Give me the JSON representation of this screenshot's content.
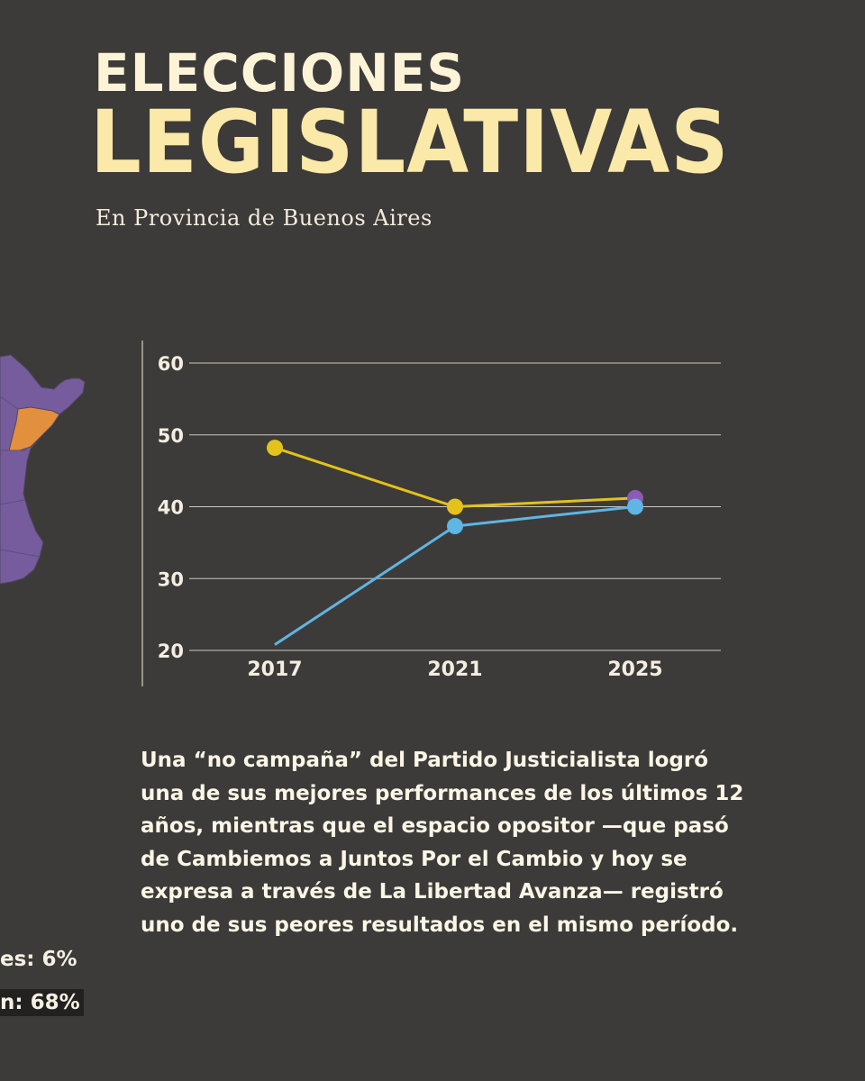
{
  "header": {
    "title_line1": "ELECCIONES",
    "title_line2": "LEGISLATIVAS",
    "subtitle": "En Provincia de Buenos Aires"
  },
  "body_text": "Una “no campaña” del Partido Justicialista logró una de sus mejores performances de los últimos 12 años, mientras que el espacio opositor —que pasó de Cambiemos a Juntos Por el Cambio y hoy se expresa a través de La Libertad Avanza— registró uno de sus peores resultados en el mismo período.",
  "side_stats": {
    "stat1": "es: 6%",
    "stat2": "n: 68%"
  },
  "colors": {
    "background": "#3d3b39",
    "title_light": "#fdf4d8",
    "title_gold": "#fae9a8",
    "peronism_series": "#e3c21c",
    "opposition_series": "#5fb5e3",
    "lla_marker": "#8c5ab8",
    "map_purple": "#765c9d",
    "map_orange": "#e28f3e"
  },
  "chart_data": {
    "type": "line",
    "x": [
      "2017",
      "2021",
      "2025"
    ],
    "ylim": [
      20,
      60
    ],
    "yticks": [
      20,
      30,
      40,
      50,
      60
    ],
    "grid": true,
    "series": [
      {
        "values": [
          48.2,
          40.0,
          41.2
        ],
        "color": "#e3c21c",
        "marker_colors": [
          "#e3c21c",
          "#e3c21c",
          "#8c5ab8"
        ]
      },
      {
        "values": [
          20.8,
          37.3,
          40.0
        ],
        "color": "#5fb5e3",
        "markers": [
          false,
          true,
          true
        ]
      }
    ]
  }
}
